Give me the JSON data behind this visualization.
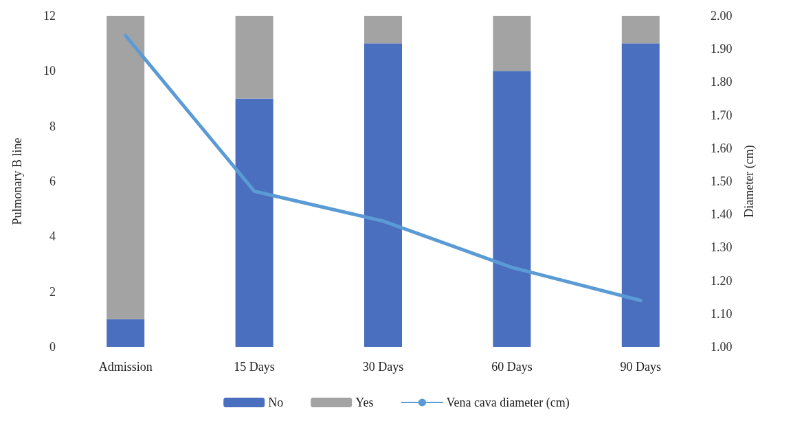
{
  "chart_data": {
    "type": "bar",
    "stacked": true,
    "ylabel": "Pulmonary B line",
    "y2label": "Diameter (cm)",
    "categories": [
      "Admission",
      "15 Days",
      "30 Days",
      "60 Days",
      "90 Days"
    ],
    "series": [
      {
        "name": "No",
        "color": "#4a6fbf",
        "values": [
          1,
          9,
          11,
          10,
          11
        ]
      },
      {
        "name": "Yes",
        "color": "#a3a3a3",
        "values": [
          11,
          3,
          1,
          2,
          1
        ]
      },
      {
        "name": "Vena cava diameter (cm)",
        "type": "line",
        "axis": "y2",
        "color": "#5b9bd5",
        "marker": "none",
        "line_style": "solid",
        "values": [
          1.94,
          1.47,
          1.38,
          1.24,
          1.14
        ]
      }
    ],
    "ylim": [
      0,
      12
    ],
    "yticks": [
      0,
      2,
      4,
      6,
      8,
      10,
      12
    ],
    "y2lim": [
      1,
      2
    ],
    "y2ticks": [
      {
        "value": 1,
        "label": "1.00"
      },
      {
        "value": 1.1,
        "label": "1.10"
      },
      {
        "value": 1.2,
        "label": "1.20"
      },
      {
        "value": 1.3,
        "label": "1.30"
      },
      {
        "value": 1.4,
        "label": "1.40"
      },
      {
        "value": 1.5,
        "label": "1.50"
      },
      {
        "value": 1.6,
        "label": "1.60"
      },
      {
        "value": 1.7,
        "label": "1.70"
      },
      {
        "value": 1.8,
        "label": "1.80"
      },
      {
        "value": 1.9,
        "label": "1.90"
      },
      {
        "value": 2,
        "label": "2.00"
      }
    ],
    "grid": false,
    "legend": "bottom"
  }
}
